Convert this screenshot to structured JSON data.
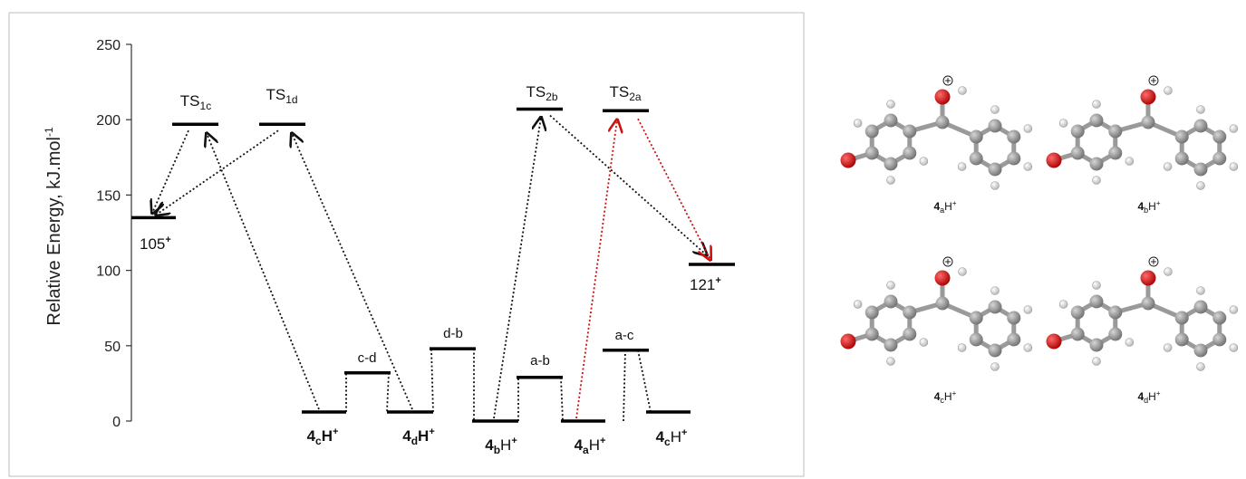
{
  "chart_data": {
    "type": "energy-level-diagram",
    "ylabel": "Relative Energy, kJ.mol",
    "ylabel_sup": "-1",
    "ylim": [
      0,
      250
    ],
    "yticks": [
      "0",
      "50",
      "100",
      "150",
      "200",
      "250"
    ],
    "levels": [
      {
        "id": "105",
        "label": "105",
        "sup": "+",
        "energy": 135
      },
      {
        "id": "ts1c",
        "label": "TS",
        "sub": "1c",
        "energy": 197
      },
      {
        "id": "ts1d",
        "label": "TS",
        "sub": "1d",
        "energy": 197
      },
      {
        "id": "4c-left",
        "label": "4",
        "sub": "c",
        "suffix": "H",
        "sup": "+",
        "energy": 6
      },
      {
        "id": "cd",
        "label": "c-d",
        "energy": 32
      },
      {
        "id": "4d",
        "label": "4",
        "sub": "d",
        "suffix": "H",
        "sup": "+",
        "energy": 6
      },
      {
        "id": "db",
        "label": "d-b",
        "energy": 48
      },
      {
        "id": "4b",
        "label": "4",
        "sub": "b",
        "suffix": "H",
        "sup": "+",
        "energy": 0
      },
      {
        "id": "ab",
        "label": "a-b",
        "energy": 29
      },
      {
        "id": "ts2b",
        "label": "TS",
        "sub": "2b",
        "energy": 207
      },
      {
        "id": "4a",
        "label": "4",
        "sub": "a",
        "suffix": "H",
        "sup": "+",
        "energy": 0
      },
      {
        "id": "ts2a",
        "label": "TS",
        "sub": "2a",
        "energy": 206
      },
      {
        "id": "ac",
        "label": "a-c",
        "energy": 47
      },
      {
        "id": "4c-right",
        "label": "4",
        "sub": "c",
        "suffix": "H",
        "sup": "+",
        "energy": 6
      },
      {
        "id": "121",
        "label": "121",
        "sup": "+",
        "energy": 104
      }
    ],
    "molecules": [
      {
        "id": "4a",
        "label": "4",
        "sub": "a",
        "suffix": "H",
        "sup": "+"
      },
      {
        "id": "4b",
        "label": "4",
        "sub": "b",
        "suffix": "H",
        "sup": "+"
      },
      {
        "id": "4c",
        "label": "4",
        "sub": "c",
        "suffix": "H",
        "sup": "+"
      },
      {
        "id": "4d",
        "label": "4",
        "sub": "d",
        "suffix": "H",
        "sup": "+"
      }
    ],
    "colors": {
      "arrow": "#111111",
      "highlight": "#cc1111",
      "oxygen": "#cc1111",
      "carbon": "#8a8a8a",
      "hydrogen": "#d8d8d8"
    }
  }
}
